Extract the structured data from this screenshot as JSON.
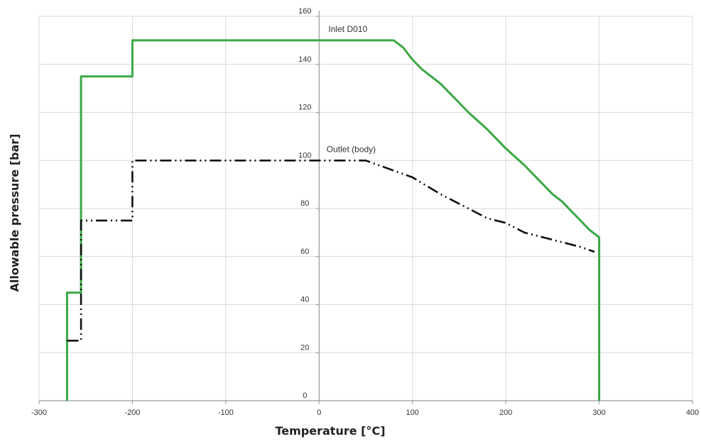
{
  "chart_data": {
    "type": "line",
    "title": "",
    "xlabel": "Temperature [°C]",
    "ylabel": "Allowable pressure [bar]",
    "xlim": [
      -300,
      400
    ],
    "ylim": [
      0,
      160
    ],
    "x_ticks": [
      -300,
      -200,
      -100,
      0,
      100,
      200,
      300,
      400
    ],
    "y_ticks": [
      0,
      20,
      40,
      60,
      80,
      100,
      120,
      140,
      160
    ],
    "grid": true,
    "legend": "none",
    "series": [
      {
        "name": "Inlet D010",
        "color": "#3aa843",
        "dash": "solid",
        "points": [
          [
            -270,
            0
          ],
          [
            -270,
            45
          ],
          [
            -255,
            45
          ],
          [
            -255,
            135
          ],
          [
            -200,
            135
          ],
          [
            -200,
            150
          ],
          [
            80,
            150
          ],
          [
            90,
            147
          ],
          [
            100,
            142
          ],
          [
            110,
            138
          ],
          [
            120,
            135
          ],
          [
            130,
            132
          ],
          [
            140,
            128
          ],
          [
            160,
            120
          ],
          [
            180,
            113
          ],
          [
            200,
            105
          ],
          [
            220,
            98
          ],
          [
            240,
            90
          ],
          [
            250,
            86
          ],
          [
            260,
            83
          ],
          [
            280,
            75
          ],
          [
            290,
            71
          ],
          [
            300,
            68
          ],
          [
            300,
            0
          ]
        ]
      },
      {
        "name": "Outlet (body)",
        "color": "#111111",
        "dash": "dash-dot-dot",
        "points": [
          [
            -270,
            25
          ],
          [
            -255,
            25
          ],
          [
            -255,
            75
          ],
          [
            -200,
            75
          ],
          [
            -200,
            100
          ],
          [
            50,
            100
          ],
          [
            100,
            93
          ],
          [
            130,
            86
          ],
          [
            160,
            80
          ],
          [
            180,
            76
          ],
          [
            200,
            74
          ],
          [
            220,
            70
          ],
          [
            240,
            68
          ],
          [
            260,
            66
          ],
          [
            280,
            64
          ],
          [
            295,
            62
          ]
        ]
      }
    ]
  }
}
